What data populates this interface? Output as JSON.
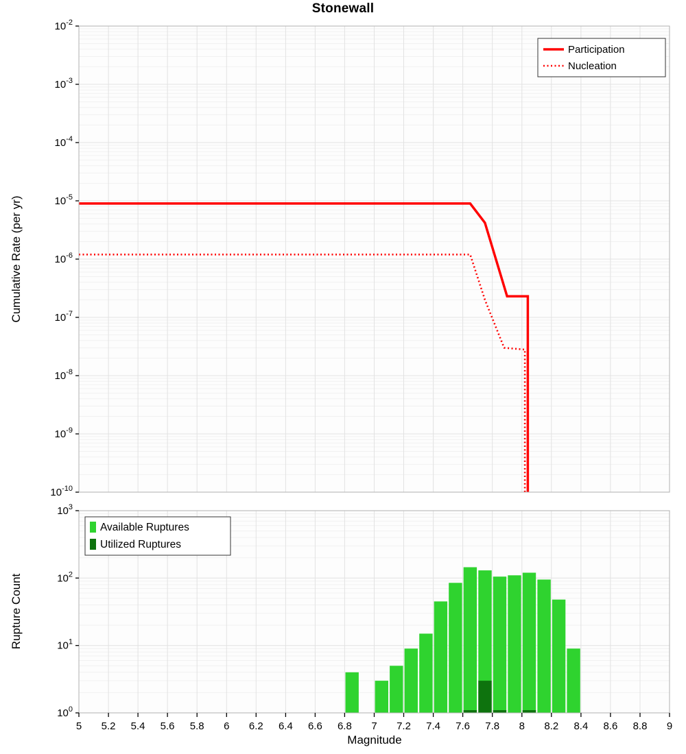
{
  "title": "Stonewall",
  "colors": {
    "line": "#ff0000",
    "available": "#2fd32f",
    "utilized": "#0e730e",
    "grid_major": "#e2e2e2",
    "grid_minor": "#f1f1f1",
    "frame": "#b0b0b0",
    "plot_bg": "#fdfdfd",
    "tick": "#000000",
    "legend_border": "#333333",
    "legend_bg": "#ffffff"
  },
  "chart_data": [
    {
      "type": "line",
      "title": "Stonewall",
      "xlabel": "",
      "ylabel": "Cumulative Rate (per yr)",
      "xlim": [
        5,
        9
      ],
      "x_tick_step": 0.2,
      "ylim_exp": [
        -10,
        -2
      ],
      "y_tick_exponents": [
        -2,
        -3,
        -4,
        -5,
        -6,
        -7,
        -8,
        -9,
        -10
      ],
      "grid": true,
      "legend": {
        "position": "top-right",
        "entries": [
          {
            "label": "Participation",
            "style": "solid"
          },
          {
            "label": "Nucleation",
            "style": "dotted"
          }
        ]
      },
      "series": [
        {
          "name": "Participation",
          "style": "solid",
          "color": "#ff0000",
          "points": [
            [
              5.0,
              9e-06
            ],
            [
              7.65,
              9e-06
            ],
            [
              7.75,
              4.2e-06
            ],
            [
              7.9,
              2.3e-07
            ],
            [
              8.04,
              2.3e-07
            ],
            [
              8.04,
              1e-10
            ]
          ]
        },
        {
          "name": "Nucleation",
          "style": "dotted",
          "color": "#ff0000",
          "points": [
            [
              5.0,
              1.2e-06
            ],
            [
              7.65,
              1.2e-06
            ],
            [
              7.75,
              2e-07
            ],
            [
              7.88,
              3e-08
            ],
            [
              8.02,
              2.8e-08
            ],
            [
              8.02,
              1e-10
            ]
          ]
        }
      ]
    },
    {
      "type": "bar",
      "title": "",
      "xlabel": "Magnitude",
      "ylabel": "Rupture Count",
      "xlim": [
        5,
        9
      ],
      "x_tick_step": 0.2,
      "x_tick_labels": [
        "5",
        "5.2",
        "5.4",
        "5.6",
        "5.8",
        "6",
        "6.2",
        "6.4",
        "6.6",
        "6.8",
        "7",
        "7.2",
        "7.4",
        "7.6",
        "7.8",
        "8",
        "8.2",
        "8.4",
        "8.6",
        "8.8",
        "9"
      ],
      "ylim_exp": [
        0,
        3
      ],
      "y_tick_exponents": [
        3,
        2,
        1,
        0
      ],
      "bar_width": 0.09,
      "grid": true,
      "legend": {
        "position": "top-left",
        "entries": [
          {
            "label": "Available Ruptures",
            "color": "#2fd32f"
          },
          {
            "label": "Utilized Ruptures",
            "color": "#0e730e"
          }
        ]
      },
      "series": [
        {
          "name": "Available Ruptures",
          "color": "#2fd32f",
          "x": [
            6.85,
            7.05,
            7.15,
            7.25,
            7.35,
            7.45,
            7.55,
            7.65,
            7.75,
            7.85,
            7.95,
            8.05,
            8.15,
            8.25,
            8.35
          ],
          "values": [
            4,
            3,
            5,
            9,
            15,
            45,
            85,
            145,
            130,
            105,
            110,
            120,
            95,
            48,
            9
          ]
        },
        {
          "name": "Utilized Ruptures",
          "color": "#0e730e",
          "x": [
            7.65,
            7.75,
            7.85,
            8.05
          ],
          "values": [
            1,
            3,
            1,
            1
          ]
        }
      ]
    }
  ]
}
